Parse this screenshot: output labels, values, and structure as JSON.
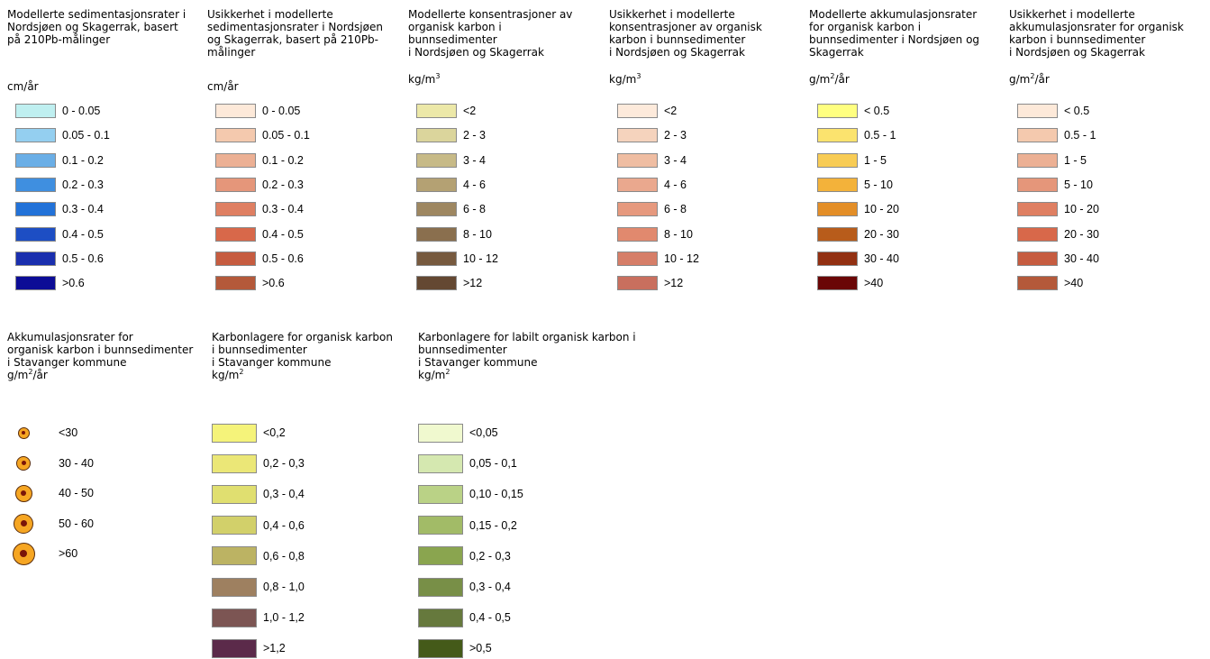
{
  "top_legends": [
    {
      "title": "Modellerte sedimentasjonsrater i\nNordsjøen og Skagerrak, basert\npå 210Pb-målinger",
      "unit_base": "cm/år",
      "unit_sup": "",
      "unit_tail": "",
      "items": [
        {
          "label": "0 - 0.05",
          "color": "#bfeff0"
        },
        {
          "label": "0.05 - 0.1",
          "color": "#94cff0"
        },
        {
          "label": "0.1 - 0.2",
          "color": "#6aaee6"
        },
        {
          "label": "0.2 - 0.3",
          "color": "#3f8fe0"
        },
        {
          "label": "0.3 - 0.4",
          "color": "#2272d8"
        },
        {
          "label": "0.4 - 0.5",
          "color": "#1d4ec4"
        },
        {
          "label": "0.5 - 0.6",
          "color": "#1a2fae"
        },
        {
          "label": ">0.6",
          "color": "#0c0c96"
        }
      ]
    },
    {
      "title": "Usikkerhet i modellerte\nsedimentasjonsrater i Nordsjøen\nog Skagerrak, basert på 210Pb-\nmålinger",
      "unit_base": "cm/år",
      "unit_sup": "",
      "unit_tail": "",
      "items": [
        {
          "label": "0 - 0.05",
          "color": "#fde9d9"
        },
        {
          "label": "0.05 - 0.1",
          "color": "#f4c9ae"
        },
        {
          "label": "0.1 - 0.2",
          "color": "#ecb094"
        },
        {
          "label": "0.2 - 0.3",
          "color": "#e5967a"
        },
        {
          "label": "0.3 - 0.4",
          "color": "#df7f62"
        },
        {
          "label": "0.4 - 0.5",
          "color": "#d8684a"
        },
        {
          "label": "0.5 - 0.6",
          "color": "#c65c40"
        },
        {
          "label": ">0.6",
          "color": "#b4593a"
        }
      ]
    },
    {
      "title": "Modellerte konsentrasjoner av\norganisk karbon i\nbunnsedimenter\ni Nordsjøen og Skagerrak",
      "unit_base": "kg/m",
      "unit_sup": "3",
      "unit_tail": "",
      "items": [
        {
          "label": "<2",
          "color": "#ece8a8"
        },
        {
          "label": "2 - 3",
          "color": "#dbd59c"
        },
        {
          "label": "3 - 4",
          "color": "#c7ba87"
        },
        {
          "label": "4 - 6",
          "color": "#b4a173"
        },
        {
          "label": "6 - 8",
          "color": "#9e8761"
        },
        {
          "label": "8 - 10",
          "color": "#8a6f4e"
        },
        {
          "label": "10 - 12",
          "color": "#775a3f"
        },
        {
          "label": ">12",
          "color": "#644832"
        }
      ]
    },
    {
      "title": "Usikkerhet i modellerte\nkonsentrasjoner av organisk\nkarbon i bunnsedimenter\ni Nordsjøen og Skagerrak",
      "unit_base": "kg/m",
      "unit_sup": "3",
      "unit_tail": "",
      "items": [
        {
          "label": "<2",
          "color": "#fdeadb"
        },
        {
          "label": "2 - 3",
          "color": "#f5d3bd"
        },
        {
          "label": "3 - 4",
          "color": "#efbda2"
        },
        {
          "label": "4 - 6",
          "color": "#eaa88e"
        },
        {
          "label": "6 - 8",
          "color": "#e6997e"
        },
        {
          "label": "8 - 10",
          "color": "#e1896e"
        },
        {
          "label": "10 - 12",
          "color": "#d67e68"
        },
        {
          "label": ">12",
          "color": "#c96f5e"
        }
      ]
    },
    {
      "title": "Modellerte akkumulasjonsrater\nfor organisk karbon i\nbunnsedimenter i Nordsjøen og\nSkagerrak",
      "unit_base": "g/m",
      "unit_sup": "2",
      "unit_tail": "/år",
      "items": [
        {
          "label": "< 0.5",
          "color": "#ffff80"
        },
        {
          "label": "0.5 - 1",
          "color": "#fbe36e"
        },
        {
          "label": "1 - 5",
          "color": "#f8cc55"
        },
        {
          "label": "5 - 10",
          "color": "#f3b23a"
        },
        {
          "label": "10 - 20",
          "color": "#e38e27"
        },
        {
          "label": "20 - 30",
          "color": "#b85c1b"
        },
        {
          "label": "30 - 40",
          "color": "#923012"
        },
        {
          "label": ">40",
          "color": "#6a0606"
        }
      ]
    },
    {
      "title": "Usikkerhet i modellerte\nakkumulasjonsrater for organisk\nkarbon i bunnsedimenter\ni Nordsjøen og Skagerrak",
      "unit_base": "g/m",
      "unit_sup": "2",
      "unit_tail": "/år",
      "items": [
        {
          "label": "< 0.5",
          "color": "#fde9d9"
        },
        {
          "label": "0.5 - 1",
          "color": "#f4c9ae"
        },
        {
          "label": "1 - 5",
          "color": "#ecb094"
        },
        {
          "label": "5 - 10",
          "color": "#e5967a"
        },
        {
          "label": "10 - 20",
          "color": "#df7f62"
        },
        {
          "label": "20 - 30",
          "color": "#d8684a"
        },
        {
          "label": "30 - 40",
          "color": "#c65c40"
        },
        {
          "label": ">40",
          "color": "#b4593a"
        }
      ]
    }
  ],
  "accumulation_legend": {
    "title": "Akkumulasjonsrater for\norganisk karbon i bunnsedimenter\ni Stavanger kommune",
    "unit_base": "g/m",
    "unit_sup": "2",
    "unit_tail": "/år",
    "items": [
      {
        "label": "<30"
      },
      {
        "label": "30 - 40"
      },
      {
        "label": "40 - 50"
      },
      {
        "label": "50 - 60"
      },
      {
        "label": ">60"
      }
    ]
  },
  "stock_legends": [
    {
      "title": "Karbonlagere for organisk karbon\ni bunnsedimenter\ni Stavanger kommune",
      "unit_base": "kg/m",
      "unit_sup": "2",
      "unit_tail": "",
      "items": [
        {
          "label": "<0,2",
          "color": "#f5f37a"
        },
        {
          "label": "0,2 - 0,3",
          "color": "#ebe777"
        },
        {
          "label": "0,3 - 0,4",
          "color": "#e0df70"
        },
        {
          "label": "0,4 - 0,6",
          "color": "#d2d06a"
        },
        {
          "label": "0,6 - 0,8",
          "color": "#bcb363"
        },
        {
          "label": "0,8 - 1,0",
          "color": "#9e8060"
        },
        {
          "label": "1,0 - 1,2",
          "color": "#7c5553"
        },
        {
          "label": ">1,2",
          "color": "#5b2a4a"
        }
      ]
    },
    {
      "title": "Karbonlagere for labilt organisk karbon i\nbunnsedimenter\ni Stavanger kommune",
      "unit_base": "kg/m",
      "unit_sup": "2",
      "unit_tail": "",
      "items": [
        {
          "label": "<0,05",
          "color": "#f0f9cf"
        },
        {
          "label": "0,05 - 0,1",
          "color": "#d5e8b0"
        },
        {
          "label": "0,10 - 0,15",
          "color": "#bad286"
        },
        {
          "label": "0,15 - 0,2",
          "color": "#a2bb67"
        },
        {
          "label": "0,2 - 0,3",
          "color": "#8aa54f"
        },
        {
          "label": "0,3 - 0,4",
          "color": "#788f47"
        },
        {
          "label": "0,4 - 0,5",
          "color": "#66793d"
        },
        {
          "label": ">0,5",
          "color": "#445a19"
        }
      ]
    }
  ]
}
